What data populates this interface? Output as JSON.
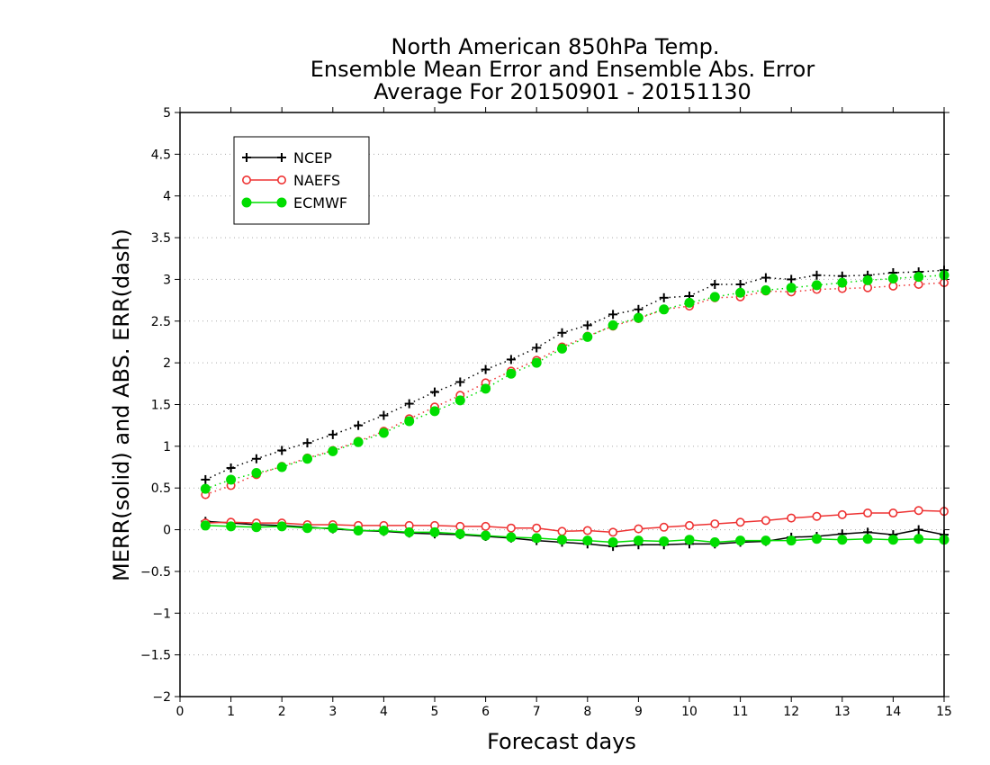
{
  "chart_data": {
    "type": "line",
    "title": [
      "North American 850hPa Temp.",
      "Ensemble Mean Error and Ensemble Abs. Error",
      "Average For 20150901 - 20151130"
    ],
    "xlabel": "Forecast days",
    "ylabel": "MERR(solid) and ABS. ERR(dash)",
    "xlim": [
      0,
      15
    ],
    "ylim": [
      -2,
      5
    ],
    "xticks": [
      0,
      1,
      2,
      3,
      4,
      5,
      6,
      7,
      8,
      9,
      10,
      11,
      12,
      13,
      14,
      15
    ],
    "yticks": [
      -2,
      -1.5,
      -1,
      -0.5,
      0,
      0.5,
      1,
      1.5,
      2,
      2.5,
      3,
      3.5,
      4,
      4.5,
      5
    ],
    "grid": "horizontal dotted",
    "legend_position": "top-left",
    "x": [
      0.5,
      1,
      1.5,
      2,
      2.5,
      3,
      3.5,
      4,
      4.5,
      5,
      5.5,
      6,
      6.5,
      7,
      7.5,
      8,
      8.5,
      9,
      9.5,
      10,
      10.5,
      11,
      11.5,
      12,
      12.5,
      13,
      13.5,
      14,
      14.5,
      15
    ],
    "series": [
      {
        "name": "NCEP",
        "color": "#000000",
        "marker": "plus",
        "merr": [
          0.1,
          0.08,
          0.06,
          0.05,
          0.03,
          0.01,
          -0.01,
          -0.02,
          -0.04,
          -0.05,
          -0.06,
          -0.08,
          -0.1,
          -0.13,
          -0.15,
          -0.17,
          -0.2,
          -0.18,
          -0.18,
          -0.17,
          -0.17,
          -0.15,
          -0.14,
          -0.09,
          -0.08,
          -0.05,
          -0.03,
          -0.06,
          0.0,
          -0.06
        ],
        "abs_err": [
          0.6,
          0.74,
          0.85,
          0.95,
          1.04,
          1.14,
          1.25,
          1.37,
          1.51,
          1.65,
          1.77,
          1.92,
          2.04,
          2.18,
          2.36,
          2.45,
          2.58,
          2.64,
          2.78,
          2.8,
          2.94,
          2.94,
          3.02,
          3.0,
          3.05,
          3.04,
          3.05,
          3.08,
          3.09,
          3.11
        ]
      },
      {
        "name": "NAEFS",
        "color": "#ee3333",
        "marker": "open-circle",
        "merr": [
          0.08,
          0.09,
          0.08,
          0.08,
          0.06,
          0.06,
          0.05,
          0.05,
          0.05,
          0.05,
          0.04,
          0.04,
          0.02,
          0.02,
          -0.02,
          -0.01,
          -0.03,
          0.01,
          0.03,
          0.05,
          0.07,
          0.09,
          0.11,
          0.14,
          0.16,
          0.18,
          0.2,
          0.2,
          0.23,
          0.22
        ],
        "abs_err": [
          0.42,
          0.53,
          0.66,
          0.76,
          0.86,
          0.95,
          1.06,
          1.18,
          1.33,
          1.47,
          1.61,
          1.76,
          1.9,
          2.03,
          2.19,
          2.32,
          2.44,
          2.53,
          2.64,
          2.68,
          2.78,
          2.79,
          2.86,
          2.85,
          2.88,
          2.89,
          2.9,
          2.92,
          2.94,
          2.96
        ]
      },
      {
        "name": "ECMWF",
        "color": "#00dd00",
        "marker": "filled-circle",
        "merr": [
          0.05,
          0.04,
          0.03,
          0.04,
          0.02,
          0.02,
          -0.01,
          -0.01,
          -0.03,
          -0.03,
          -0.05,
          -0.07,
          -0.09,
          -0.1,
          -0.12,
          -0.13,
          -0.15,
          -0.13,
          -0.14,
          -0.12,
          -0.15,
          -0.13,
          -0.13,
          -0.13,
          -0.11,
          -0.12,
          -0.11,
          -0.12,
          -0.11,
          -0.12
        ],
        "abs_err": [
          0.49,
          0.6,
          0.68,
          0.75,
          0.85,
          0.94,
          1.05,
          1.16,
          1.3,
          1.42,
          1.55,
          1.69,
          1.87,
          2.0,
          2.17,
          2.31,
          2.45,
          2.54,
          2.64,
          2.72,
          2.79,
          2.84,
          2.87,
          2.9,
          2.93,
          2.96,
          2.99,
          3.01,
          3.03,
          3.05
        ]
      }
    ]
  }
}
